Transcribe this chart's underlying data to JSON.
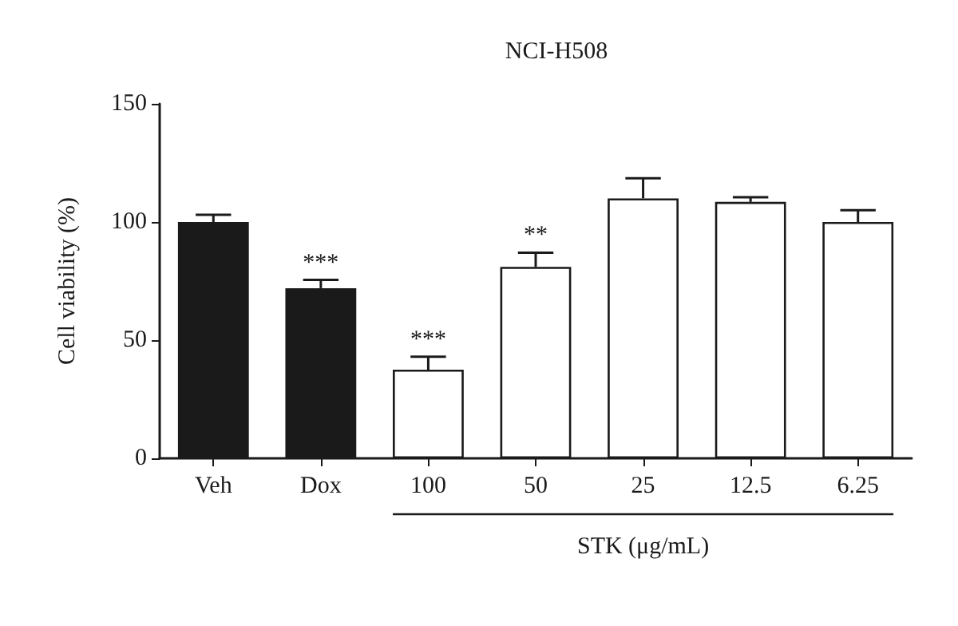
{
  "chart_data": {
    "type": "bar",
    "title": "NCI-H508",
    "ylabel": "Cell viability (%)",
    "xlabel": "STK (μg/mL)",
    "categories": [
      "Veh",
      "Dox",
      "100",
      "50",
      "25",
      "12.5",
      "6.25"
    ],
    "values": [
      100,
      72,
      37.5,
      81,
      110,
      108.5,
      100
    ],
    "errors": [
      3,
      3.5,
      5.5,
      6,
      8.5,
      2,
      5
    ],
    "colors": [
      "#1a1a1a",
      "#1a1a1a",
      "#ffffff",
      "#ffffff",
      "#ffffff",
      "#ffffff",
      "#ffffff"
    ],
    "ylim": [
      0,
      150
    ],
    "yticks": [
      0,
      50,
      100,
      150
    ],
    "grid": false,
    "annotations": [
      {
        "text": "***",
        "x": "Dox",
        "y": 75.5
      },
      {
        "text": "***",
        "x": "100",
        "y": 43
      },
      {
        "text": "**",
        "x": "50",
        "y": 87
      }
    ]
  }
}
